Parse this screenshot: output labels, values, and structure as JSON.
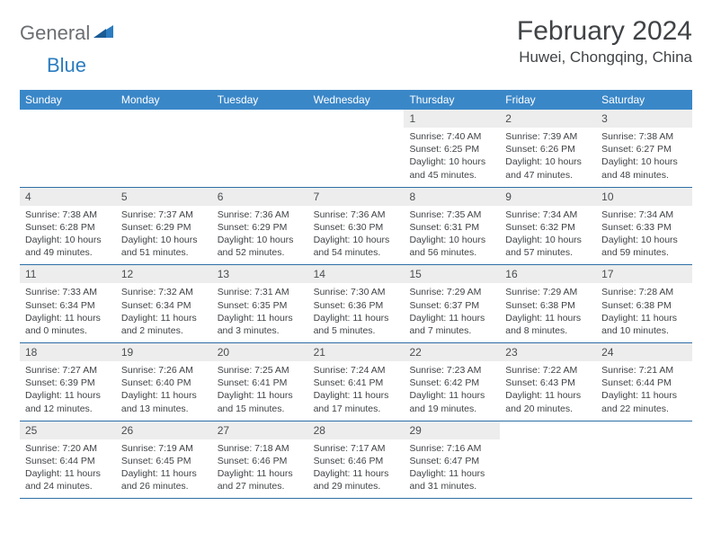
{
  "brand": {
    "part1": "General",
    "part2": "Blue"
  },
  "title": "February 2024",
  "location": "Huwei, Chongqing, China",
  "colors": {
    "header_bg": "#3a87c8",
    "header_text": "#ffffff",
    "daynum_bg": "#ededed",
    "border": "#2e6fa5",
    "text": "#404346",
    "logo_gray": "#6b6e72",
    "logo_blue": "#2b7cc0"
  },
  "day_header_fontsize": 12,
  "cell_fontsize": 10.5,
  "dayHeaders": [
    "Sunday",
    "Monday",
    "Tuesday",
    "Wednesday",
    "Thursday",
    "Friday",
    "Saturday"
  ],
  "weeks": [
    [
      {
        "n": "",
        "sr": "",
        "ss": "",
        "dl": ""
      },
      {
        "n": "",
        "sr": "",
        "ss": "",
        "dl": ""
      },
      {
        "n": "",
        "sr": "",
        "ss": "",
        "dl": ""
      },
      {
        "n": "",
        "sr": "",
        "ss": "",
        "dl": ""
      },
      {
        "n": "1",
        "sr": "Sunrise: 7:40 AM",
        "ss": "Sunset: 6:25 PM",
        "dl": "Daylight: 10 hours and 45 minutes."
      },
      {
        "n": "2",
        "sr": "Sunrise: 7:39 AM",
        "ss": "Sunset: 6:26 PM",
        "dl": "Daylight: 10 hours and 47 minutes."
      },
      {
        "n": "3",
        "sr": "Sunrise: 7:38 AM",
        "ss": "Sunset: 6:27 PM",
        "dl": "Daylight: 10 hours and 48 minutes."
      }
    ],
    [
      {
        "n": "4",
        "sr": "Sunrise: 7:38 AM",
        "ss": "Sunset: 6:28 PM",
        "dl": "Daylight: 10 hours and 49 minutes."
      },
      {
        "n": "5",
        "sr": "Sunrise: 7:37 AM",
        "ss": "Sunset: 6:29 PM",
        "dl": "Daylight: 10 hours and 51 minutes."
      },
      {
        "n": "6",
        "sr": "Sunrise: 7:36 AM",
        "ss": "Sunset: 6:29 PM",
        "dl": "Daylight: 10 hours and 52 minutes."
      },
      {
        "n": "7",
        "sr": "Sunrise: 7:36 AM",
        "ss": "Sunset: 6:30 PM",
        "dl": "Daylight: 10 hours and 54 minutes."
      },
      {
        "n": "8",
        "sr": "Sunrise: 7:35 AM",
        "ss": "Sunset: 6:31 PM",
        "dl": "Daylight: 10 hours and 56 minutes."
      },
      {
        "n": "9",
        "sr": "Sunrise: 7:34 AM",
        "ss": "Sunset: 6:32 PM",
        "dl": "Daylight: 10 hours and 57 minutes."
      },
      {
        "n": "10",
        "sr": "Sunrise: 7:34 AM",
        "ss": "Sunset: 6:33 PM",
        "dl": "Daylight: 10 hours and 59 minutes."
      }
    ],
    [
      {
        "n": "11",
        "sr": "Sunrise: 7:33 AM",
        "ss": "Sunset: 6:34 PM",
        "dl": "Daylight: 11 hours and 0 minutes."
      },
      {
        "n": "12",
        "sr": "Sunrise: 7:32 AM",
        "ss": "Sunset: 6:34 PM",
        "dl": "Daylight: 11 hours and 2 minutes."
      },
      {
        "n": "13",
        "sr": "Sunrise: 7:31 AM",
        "ss": "Sunset: 6:35 PM",
        "dl": "Daylight: 11 hours and 3 minutes."
      },
      {
        "n": "14",
        "sr": "Sunrise: 7:30 AM",
        "ss": "Sunset: 6:36 PM",
        "dl": "Daylight: 11 hours and 5 minutes."
      },
      {
        "n": "15",
        "sr": "Sunrise: 7:29 AM",
        "ss": "Sunset: 6:37 PM",
        "dl": "Daylight: 11 hours and 7 minutes."
      },
      {
        "n": "16",
        "sr": "Sunrise: 7:29 AM",
        "ss": "Sunset: 6:38 PM",
        "dl": "Daylight: 11 hours and 8 minutes."
      },
      {
        "n": "17",
        "sr": "Sunrise: 7:28 AM",
        "ss": "Sunset: 6:38 PM",
        "dl": "Daylight: 11 hours and 10 minutes."
      }
    ],
    [
      {
        "n": "18",
        "sr": "Sunrise: 7:27 AM",
        "ss": "Sunset: 6:39 PM",
        "dl": "Daylight: 11 hours and 12 minutes."
      },
      {
        "n": "19",
        "sr": "Sunrise: 7:26 AM",
        "ss": "Sunset: 6:40 PM",
        "dl": "Daylight: 11 hours and 13 minutes."
      },
      {
        "n": "20",
        "sr": "Sunrise: 7:25 AM",
        "ss": "Sunset: 6:41 PM",
        "dl": "Daylight: 11 hours and 15 minutes."
      },
      {
        "n": "21",
        "sr": "Sunrise: 7:24 AM",
        "ss": "Sunset: 6:41 PM",
        "dl": "Daylight: 11 hours and 17 minutes."
      },
      {
        "n": "22",
        "sr": "Sunrise: 7:23 AM",
        "ss": "Sunset: 6:42 PM",
        "dl": "Daylight: 11 hours and 19 minutes."
      },
      {
        "n": "23",
        "sr": "Sunrise: 7:22 AM",
        "ss": "Sunset: 6:43 PM",
        "dl": "Daylight: 11 hours and 20 minutes."
      },
      {
        "n": "24",
        "sr": "Sunrise: 7:21 AM",
        "ss": "Sunset: 6:44 PM",
        "dl": "Daylight: 11 hours and 22 minutes."
      }
    ],
    [
      {
        "n": "25",
        "sr": "Sunrise: 7:20 AM",
        "ss": "Sunset: 6:44 PM",
        "dl": "Daylight: 11 hours and 24 minutes."
      },
      {
        "n": "26",
        "sr": "Sunrise: 7:19 AM",
        "ss": "Sunset: 6:45 PM",
        "dl": "Daylight: 11 hours and 26 minutes."
      },
      {
        "n": "27",
        "sr": "Sunrise: 7:18 AM",
        "ss": "Sunset: 6:46 PM",
        "dl": "Daylight: 11 hours and 27 minutes."
      },
      {
        "n": "28",
        "sr": "Sunrise: 7:17 AM",
        "ss": "Sunset: 6:46 PM",
        "dl": "Daylight: 11 hours and 29 minutes."
      },
      {
        "n": "29",
        "sr": "Sunrise: 7:16 AM",
        "ss": "Sunset: 6:47 PM",
        "dl": "Daylight: 11 hours and 31 minutes."
      },
      {
        "n": "",
        "sr": "",
        "ss": "",
        "dl": ""
      },
      {
        "n": "",
        "sr": "",
        "ss": "",
        "dl": ""
      }
    ]
  ]
}
